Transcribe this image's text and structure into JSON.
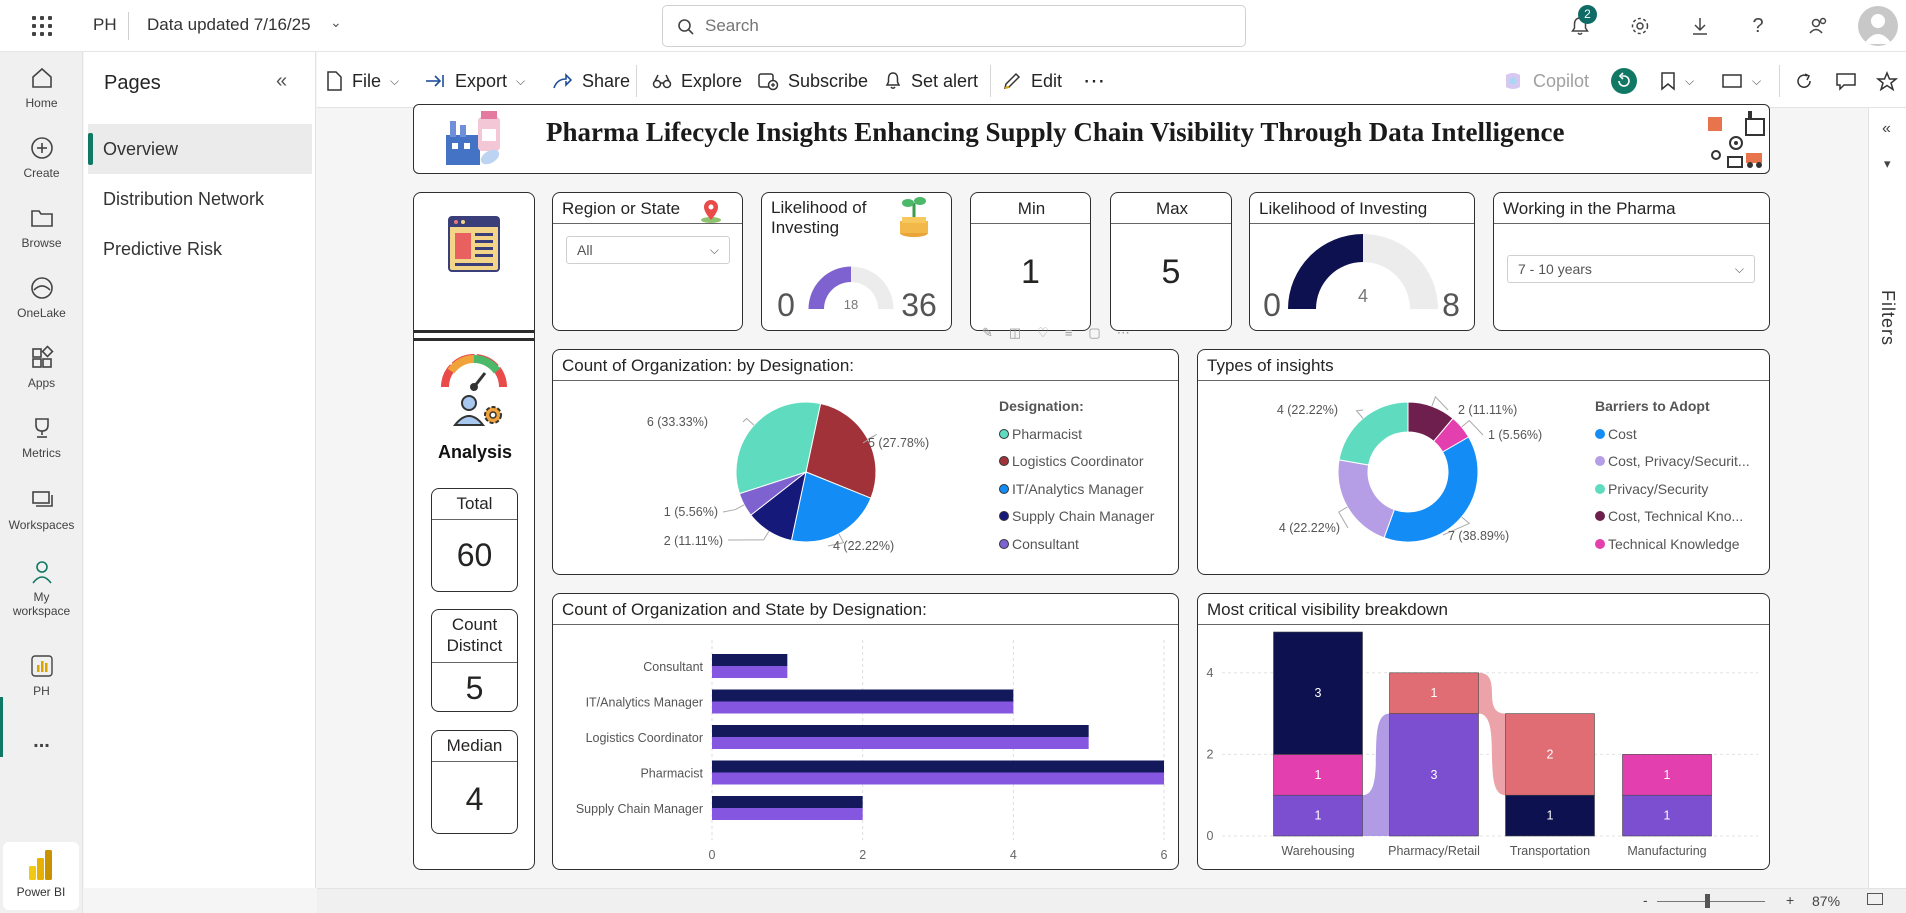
{
  "app": {
    "abbr": "PH",
    "data_updated": "Data updated 7/16/25"
  },
  "search": {
    "placeholder": "Search"
  },
  "notifications": {
    "count": "2"
  },
  "nav": {
    "home": "Home",
    "create": "Create",
    "browse": "Browse",
    "onelake": "OneLake",
    "apps": "Apps",
    "metrics": "Metrics",
    "workspaces": "Workspaces",
    "my_workspace_1": "My",
    "my_workspace_2": "workspace",
    "ph": "PH",
    "more": "...",
    "powerbi": "Power BI"
  },
  "pages": {
    "title": "Pages",
    "items": [
      "Overview",
      "Distribution Network",
      "Predictive Risk"
    ],
    "active": 0
  },
  "toolbar": {
    "file": "File",
    "export": "Export",
    "share": "Share",
    "explore": "Explore",
    "subscribe": "Subscribe",
    "set_alert": "Set alert",
    "edit": "Edit",
    "more": "⋯",
    "copilot": "Copilot"
  },
  "filters_label": "Filters",
  "status": {
    "zoom": "87%",
    "minus": "-",
    "plus": "+"
  },
  "report": {
    "banner_title": "Pharma Lifecycle Insights Enhancing Supply Chain Visibility Through Data Intelligence",
    "analysis_label": "Analysis",
    "stats": [
      {
        "label": "Total",
        "value": "60"
      },
      {
        "label_1": "Count",
        "label_2": "Distinct",
        "value": "5"
      },
      {
        "label": "Median",
        "value": "4"
      }
    ],
    "region": {
      "title": "Region or State",
      "selected": "All"
    },
    "likelihood_small": {
      "title_1": "Likelihood of",
      "title_2": "Investing",
      "min": "0",
      "max": "36",
      "value": 18,
      "value_label": "18"
    },
    "min_card": {
      "title": "Min",
      "value": "1"
    },
    "max_card": {
      "title": "Max",
      "value": "5"
    },
    "likelihood_big": {
      "title": "Likelihood of Investing",
      "min": "0",
      "max": "8",
      "value": 4,
      "value_label": "4"
    },
    "working": {
      "title": "Working in the Pharma",
      "selected": "7 - 10 years"
    },
    "pie_title": "Count of Organization: by Designation:",
    "donut_title": "Types of insights",
    "bar_title": "Count of Organization and State by Designation:",
    "ribbon_title": "Most critical visibility breakdown"
  },
  "colors": {
    "teal": "#5fdcc0",
    "red": "#a1323a",
    "blue": "#148cf5",
    "navy": "#14197a",
    "purple": "#7e62cf",
    "lavender": "#b59ee6",
    "plum": "#6e1f4d",
    "pink": "#e43fae",
    "salmon": "#e06c74",
    "dark_navy": "#0e1150",
    "violet": "#7b4fcf",
    "gauge_bg": "#ececec"
  },
  "chart_data": [
    {
      "type": "pie",
      "title": "Count of Organization: by Designation:",
      "legend_title": "Designation:",
      "legend_position": "right",
      "slices": [
        {
          "name": "Pharmacist",
          "value": 6,
          "label": "6 (33.33%)",
          "color": "#5fdcc0"
        },
        {
          "name": "Logistics Coordinator",
          "value": 5,
          "label": "5 (27.78%)",
          "color": "#a1323a"
        },
        {
          "name": "IT/Analytics Manager",
          "value": 4,
          "label": "4 (22.22%)",
          "color": "#148cf5"
        },
        {
          "name": "Supply Chain Manager",
          "value": 2,
          "label": "2 (11.11%)",
          "color": "#14197a"
        },
        {
          "name": "Consultant",
          "value": 1,
          "label": "1 (5.56%)",
          "color": "#7e62cf"
        }
      ]
    },
    {
      "type": "pie",
      "donut": true,
      "title": "Types of insights",
      "legend_title": "Barriers to Adopt",
      "legend_position": "right",
      "slices": [
        {
          "name": "Cost",
          "value": 7,
          "label": "7 (38.89%)",
          "color": "#148cf5"
        },
        {
          "name": "Cost, Privacy/Securit...",
          "value": 4,
          "label": "4 (22.22%)",
          "color": "#b59ee6"
        },
        {
          "name": "Privacy/Security",
          "value": 4,
          "label": "4 (22.22%)",
          "color": "#5fdcc0"
        },
        {
          "name": "Cost, Technical Kno...",
          "value": 2,
          "label": "2 (11.11%)",
          "color": "#6e1f4d"
        },
        {
          "name": "Technical Knowledge",
          "value": 1,
          "label": "1 (5.56%)",
          "color": "#e43fae"
        }
      ]
    },
    {
      "type": "bar",
      "orientation": "horizontal",
      "title": "Count of Organization and State by Designation:",
      "categories": [
        "Consultant",
        "IT/Analytics Manager",
        "Logistics Coordinator",
        "Pharmacist",
        "Supply Chain Manager"
      ],
      "series": [
        {
          "values": [
            1,
            4,
            5,
            6,
            2
          ],
          "color": "#14195c"
        },
        {
          "values": [
            1,
            4,
            5,
            6,
            2
          ],
          "color": "#8557e0"
        }
      ],
      "xlim": [
        0,
        6
      ],
      "xticks": [
        "0",
        "2",
        "4",
        "6"
      ],
      "grid": true
    },
    {
      "type": "bar",
      "stacked": true,
      "ribbon": true,
      "title": "Most critical visibility breakdown",
      "categories": [
        "Warehousing",
        "Pharmacy/Retail",
        "Transportation",
        "Manufacturing"
      ],
      "ylim": [
        0,
        5
      ],
      "yticks": [
        "0",
        "2",
        "4"
      ],
      "stacks": [
        [
          {
            "value": 1,
            "color": "#7b4fcf"
          },
          {
            "value": 1,
            "color": "#e43fae"
          },
          {
            "value": 3,
            "color": "#0e1150"
          }
        ],
        [
          {
            "value": 3,
            "color": "#7b4fcf"
          },
          {
            "value": 1,
            "color": "#e06c74"
          }
        ],
        [
          {
            "value": 1,
            "color": "#0e1150"
          },
          {
            "value": 2,
            "color": "#e06c74"
          }
        ],
        [
          {
            "value": 1,
            "color": "#7b4fcf"
          },
          {
            "value": 1,
            "color": "#e43fae"
          }
        ]
      ]
    }
  ]
}
